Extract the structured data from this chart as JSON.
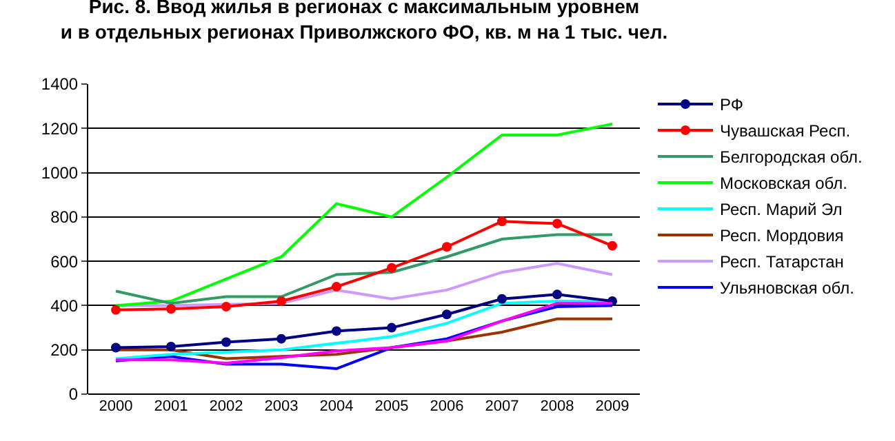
{
  "chart_data": {
    "type": "line",
    "title": "Рис. 8. Ввод жилья в регионах с максимальным уровнем\nи в отдельных регионах Приволжского ФО, кв. м на 1 тыс. чел.",
    "categories": [
      "2000",
      "2001",
      "2002",
      "2003",
      "2004",
      "2005",
      "2006",
      "2007",
      "2008",
      "2009"
    ],
    "series": [
      {
        "name": "РФ",
        "color": "#000080",
        "marker": "circle",
        "values": [
          210,
          215,
          235,
          250,
          285,
          300,
          360,
          430,
          450,
          420
        ]
      },
      {
        "name": "Чувашская Респ.",
        "color": "#ff0000",
        "marker": "circle",
        "values": [
          380,
          385,
          395,
          420,
          485,
          570,
          665,
          780,
          770,
          670
        ]
      },
      {
        "name": "Белгородская обл.",
        "color": "#339966",
        "values": [
          465,
          410,
          440,
          440,
          540,
          550,
          620,
          700,
          720,
          720
        ]
      },
      {
        "name": "Московская обл.",
        "color": "#00ff00",
        "values": [
          400,
          420,
          520,
          620,
          860,
          800,
          980,
          1170,
          1170,
          1220
        ]
      },
      {
        "name": "Респ. Марий Эл",
        "color": "#00ffff",
        "values": [
          160,
          180,
          190,
          200,
          230,
          260,
          320,
          410,
          420,
          420
        ]
      },
      {
        "name": "Респ. Мордовия",
        "color": "#993300",
        "values": [
          200,
          200,
          160,
          170,
          180,
          210,
          240,
          280,
          340,
          340
        ]
      },
      {
        "name": "Респ. Татарстан",
        "color": "#cc99ff",
        "values": [
          400,
          400,
          405,
          410,
          470,
          430,
          470,
          550,
          590,
          540
        ]
      },
      {
        "name": "Ульяновская обл.",
        "color": "#0000ff",
        "values": [
          150,
          170,
          135,
          135,
          115,
          210,
          250,
          330,
          395,
          400
        ]
      },
      {
        "color": "#ff00ff",
        "values": [
          155,
          155,
          140,
          165,
          195,
          210,
          240,
          330,
          410,
          410
        ]
      }
    ],
    "ylim": [
      0,
      1400
    ],
    "yticks": [
      0,
      200,
      400,
      600,
      800,
      1000,
      1200,
      1400
    ],
    "grid": "y",
    "legend": "right"
  }
}
